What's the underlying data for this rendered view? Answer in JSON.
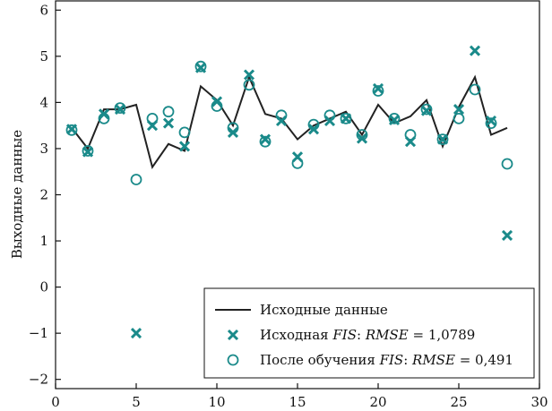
{
  "chart_data": {
    "type": "line",
    "title": "",
    "xlabel": "",
    "ylabel": "Выходные данные",
    "xlim": [
      0,
      30
    ],
    "ylim": [
      -2.2,
      6.2
    ],
    "x_ticks": [
      0,
      5,
      10,
      15,
      20,
      25,
      30
    ],
    "y_ticks": [
      -2,
      -1,
      0,
      1,
      2,
      3,
      4,
      5,
      6
    ],
    "y_tick_labels": [
      "−2",
      "−1",
      "0",
      "1",
      "2",
      "3",
      "4",
      "5",
      "6"
    ],
    "grid": false,
    "legend_position": "bottom-right",
    "colors": {
      "line": "#222222",
      "markers": "#1a8a8a"
    },
    "series": [
      {
        "name": "Исходные данные",
        "style": "line",
        "x": [
          1,
          2,
          3,
          4,
          5,
          6,
          7,
          8,
          9,
          10,
          11,
          12,
          13,
          14,
          15,
          16,
          17,
          18,
          19,
          20,
          21,
          22,
          23,
          24,
          25,
          26,
          27,
          28
        ],
        "y": [
          3.45,
          3.0,
          3.85,
          3.85,
          3.95,
          2.6,
          3.1,
          2.95,
          4.35,
          4.05,
          3.5,
          4.55,
          3.75,
          3.65,
          3.2,
          3.5,
          3.65,
          3.8,
          3.3,
          3.95,
          3.55,
          3.7,
          4.05,
          3.05,
          3.9,
          4.55,
          3.3,
          3.45
        ]
      },
      {
        "name": "Исходная FIS: RMSE = 1,0789",
        "label_prefix": "Исходная ",
        "label_fis": "FIS",
        "label_sep": ": ",
        "label_rmse": "RMSE",
        "label_value": " = 1,0789",
        "style": "x-marker",
        "x": [
          1,
          2,
          3,
          4,
          5,
          6,
          7,
          8,
          9,
          10,
          11,
          12,
          13,
          14,
          15,
          16,
          17,
          18,
          19,
          20,
          21,
          22,
          23,
          24,
          25,
          26,
          27,
          28
        ],
        "y": [
          3.42,
          2.93,
          3.75,
          3.85,
          -1.0,
          3.5,
          3.55,
          3.05,
          4.75,
          4.02,
          3.35,
          4.6,
          3.2,
          3.6,
          2.82,
          3.42,
          3.6,
          3.65,
          3.22,
          4.3,
          3.62,
          3.15,
          3.82,
          3.2,
          3.85,
          5.12,
          3.6,
          1.12
        ]
      },
      {
        "name": "После обучения FIS: RMSE = 0,491",
        "label_prefix": "После обучения ",
        "label_fis": "FIS",
        "label_sep": ": ",
        "label_rmse": "RMSE",
        "label_value": " = 0,491",
        "style": "o-marker",
        "x": [
          1,
          2,
          3,
          4,
          5,
          6,
          7,
          8,
          9,
          10,
          11,
          12,
          13,
          14,
          15,
          16,
          17,
          18,
          19,
          20,
          21,
          22,
          23,
          24,
          25,
          26,
          27,
          28
        ],
        "y": [
          3.4,
          2.95,
          3.65,
          3.88,
          2.33,
          3.65,
          3.8,
          3.35,
          4.78,
          3.92,
          3.45,
          4.38,
          3.15,
          3.72,
          2.68,
          3.52,
          3.72,
          3.65,
          3.3,
          4.25,
          3.65,
          3.3,
          3.85,
          3.2,
          3.65,
          4.28,
          3.55,
          2.67
        ]
      }
    ]
  }
}
